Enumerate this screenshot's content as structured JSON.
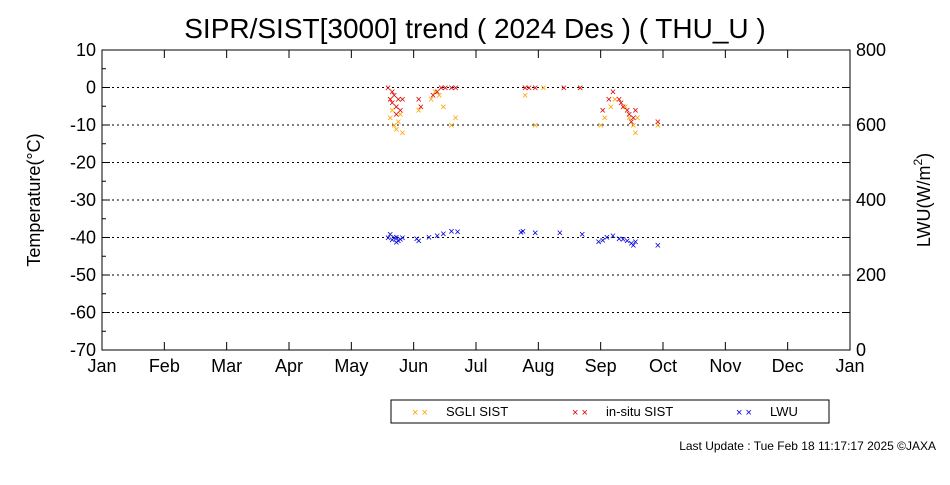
{
  "chart_data": {
    "type": "scatter",
    "title": "SIPR/SIST[3000] trend ( 2024 Des ) ( THU_U )",
    "ylabel": "Temperature(°C)",
    "y2label_main": "LWU(W/m",
    "y2label_sup": "2",
    "y2label_end": ")",
    "ylim": [
      -70,
      10
    ],
    "y2lim": [
      0,
      800
    ],
    "yticks": [
      "10",
      "0",
      "-10",
      "-20",
      "-30",
      "-40",
      "-50",
      "-60",
      "-70"
    ],
    "y2ticks": [
      "800",
      "600",
      "400",
      "200",
      "0"
    ],
    "xticks": [
      "Jan",
      "Feb",
      "Mar",
      "Apr",
      "May",
      "Jun",
      "Jul",
      "Aug",
      "Sep",
      "Oct",
      "Nov",
      "Dec",
      "Jan"
    ],
    "grid": "dotted horizontal",
    "legend_position": "bottom-center",
    "series": [
      {
        "name": "SGLI SIST",
        "color": "#ffa500",
        "axis": "left",
        "points": [
          [
            "2024-05-21",
            -8
          ],
          [
            "2024-05-21",
            -3
          ],
          [
            "2024-05-22",
            -6
          ],
          [
            "2024-05-23",
            -10
          ],
          [
            "2024-05-24",
            -11
          ],
          [
            "2024-05-24",
            -5
          ],
          [
            "2024-05-25",
            -9
          ],
          [
            "2024-05-26",
            -7
          ],
          [
            "2024-05-27",
            -12
          ],
          [
            "2024-06-04",
            -6
          ],
          [
            "2024-06-10",
            -3
          ],
          [
            "2024-06-12",
            -1
          ],
          [
            "2024-06-14",
            -2
          ],
          [
            "2024-06-16",
            -5
          ],
          [
            "2024-06-20",
            -10
          ],
          [
            "2024-06-22",
            -8
          ],
          [
            "2024-07-26",
            -2
          ],
          [
            "2024-07-31",
            -10
          ],
          [
            "2024-08-04",
            0
          ],
          [
            "2024-08-22",
            0
          ],
          [
            "2024-09-01",
            -10
          ],
          [
            "2024-09-03",
            -8
          ],
          [
            "2024-09-06",
            -5
          ],
          [
            "2024-09-08",
            -3
          ],
          [
            "2024-09-13",
            -5
          ],
          [
            "2024-09-15",
            -8
          ],
          [
            "2024-09-17",
            -10
          ],
          [
            "2024-09-18",
            -12
          ],
          [
            "2024-09-19",
            -8
          ],
          [
            "2024-09-29",
            -10
          ]
        ]
      },
      {
        "name": "in-situ SIST",
        "color": "#e00000",
        "axis": "left",
        "points": [
          [
            "2024-05-20",
            0
          ],
          [
            "2024-05-21",
            -3
          ],
          [
            "2024-05-22",
            -1
          ],
          [
            "2024-05-22",
            -4
          ],
          [
            "2024-05-23",
            -2
          ],
          [
            "2024-05-24",
            -7
          ],
          [
            "2024-05-24",
            -5
          ],
          [
            "2024-05-25",
            -3
          ],
          [
            "2024-05-26",
            -6
          ],
          [
            "2024-05-27",
            -3
          ],
          [
            "2024-06-04",
            -3
          ],
          [
            "2024-06-05",
            -5
          ],
          [
            "2024-06-11",
            -2
          ],
          [
            "2024-06-13",
            -1
          ],
          [
            "2024-06-15",
            0
          ],
          [
            "2024-06-17",
            0
          ],
          [
            "2024-06-20",
            0
          ],
          [
            "2024-06-22",
            0
          ],
          [
            "2024-07-26",
            0
          ],
          [
            "2024-07-28",
            0
          ],
          [
            "2024-07-31",
            0
          ],
          [
            "2024-08-14",
            0
          ],
          [
            "2024-08-22",
            0
          ],
          [
            "2024-09-02",
            -6
          ],
          [
            "2024-09-05",
            -3
          ],
          [
            "2024-09-07",
            -1
          ],
          [
            "2024-09-10",
            -3
          ],
          [
            "2024-09-11",
            -4
          ],
          [
            "2024-09-12",
            -5
          ],
          [
            "2024-09-14",
            -6
          ],
          [
            "2024-09-15",
            -7
          ],
          [
            "2024-09-16",
            -9
          ],
          [
            "2024-09-17",
            -8
          ],
          [
            "2024-09-18",
            -6
          ],
          [
            "2024-09-29",
            -9
          ]
        ]
      },
      {
        "name": "LWU",
        "color": "#0000dd",
        "axis": "right",
        "points": [
          [
            "2024-05-20",
            300
          ],
          [
            "2024-05-21",
            310
          ],
          [
            "2024-05-22",
            295
          ],
          [
            "2024-05-23",
            300
          ],
          [
            "2024-05-24",
            288
          ],
          [
            "2024-05-24",
            302
          ],
          [
            "2024-05-25",
            292
          ],
          [
            "2024-05-26",
            296
          ],
          [
            "2024-05-27",
            300
          ],
          [
            "2024-06-03",
            298
          ],
          [
            "2024-06-04",
            292
          ],
          [
            "2024-06-09",
            302
          ],
          [
            "2024-06-13",
            305
          ],
          [
            "2024-06-16",
            311
          ],
          [
            "2024-06-20",
            318
          ],
          [
            "2024-06-23",
            316
          ],
          [
            "2024-07-24",
            315
          ],
          [
            "2024-07-25",
            318
          ],
          [
            "2024-07-31",
            314
          ],
          [
            "2024-08-12",
            313
          ],
          [
            "2024-08-23",
            310
          ],
          [
            "2024-08-31",
            290
          ],
          [
            "2024-09-02",
            294
          ],
          [
            "2024-09-04",
            302
          ],
          [
            "2024-09-07",
            305
          ],
          [
            "2024-09-10",
            298
          ],
          [
            "2024-09-12",
            296
          ],
          [
            "2024-09-14",
            292
          ],
          [
            "2024-09-16",
            286
          ],
          [
            "2024-09-17",
            280
          ],
          [
            "2024-09-18",
            290
          ],
          [
            "2024-09-29",
            280
          ]
        ]
      }
    ]
  },
  "footer": {
    "last_update": "Last Update : Tue Feb 18 11:17:17 2025 ©JAXA"
  }
}
